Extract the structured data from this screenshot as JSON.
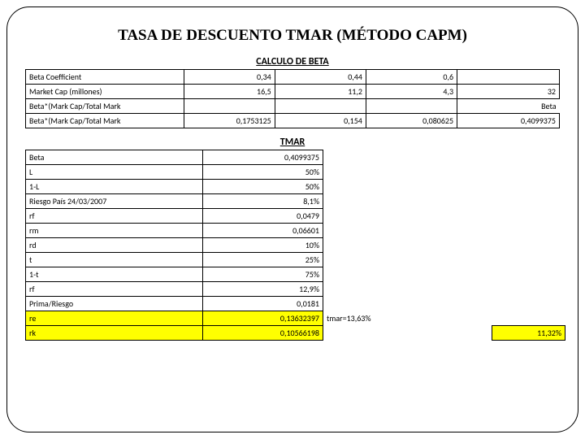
{
  "title": "TASA DE DESCUENTO TMAR (MÉTODO CAPM)",
  "sections": {
    "beta": "CALCULO DE BETA",
    "tmar": "TMAR"
  },
  "t1": {
    "rows": [
      {
        "label": "Beta Coefficient",
        "v": [
          "0,34",
          "0,44",
          "0,6",
          ""
        ]
      },
      {
        "label": "Market Cap (millones)",
        "v": [
          "16,5",
          "11,2",
          "4,3",
          "32"
        ]
      },
      {
        "label": "Beta*(Mark Cap/Total Mark",
        "v": [
          "",
          "",
          "",
          "Beta"
        ],
        "last_noborder": true
      },
      {
        "label": "Beta*(Mark Cap/Total Mark",
        "v": [
          "0,1753125",
          "0,154",
          "0,080625",
          "0,4099375"
        ]
      }
    ]
  },
  "t2": {
    "rows": [
      {
        "label": "Beta",
        "val": "0,4099375"
      },
      {
        "label": "L",
        "val": "50%"
      },
      {
        "label": "1-L",
        "val": "50%"
      },
      {
        "label": "Riesgo País 24/03/2007",
        "val": "8,1%"
      },
      {
        "label": "rf",
        "val": "0,0479"
      },
      {
        "label": "rm",
        "val": "0,06601"
      },
      {
        "label": "rd",
        "val": "10%"
      },
      {
        "label": "t",
        "val": "25%"
      },
      {
        "label": "1-t",
        "val": "75%"
      },
      {
        "label": "rf",
        "val": "12,9%"
      },
      {
        "label": "Prima/Riesgo",
        "val": "0,0181"
      }
    ],
    "re": {
      "label": "re",
      "val": "0,13632397",
      "note": "tmar=13,63%"
    },
    "rk": {
      "label": "rk",
      "val": "0,10566198",
      "extra": "11,32%"
    }
  },
  "colors": {
    "highlight": "#ffff00",
    "border": "#000000",
    "bg": "#ffffff"
  }
}
